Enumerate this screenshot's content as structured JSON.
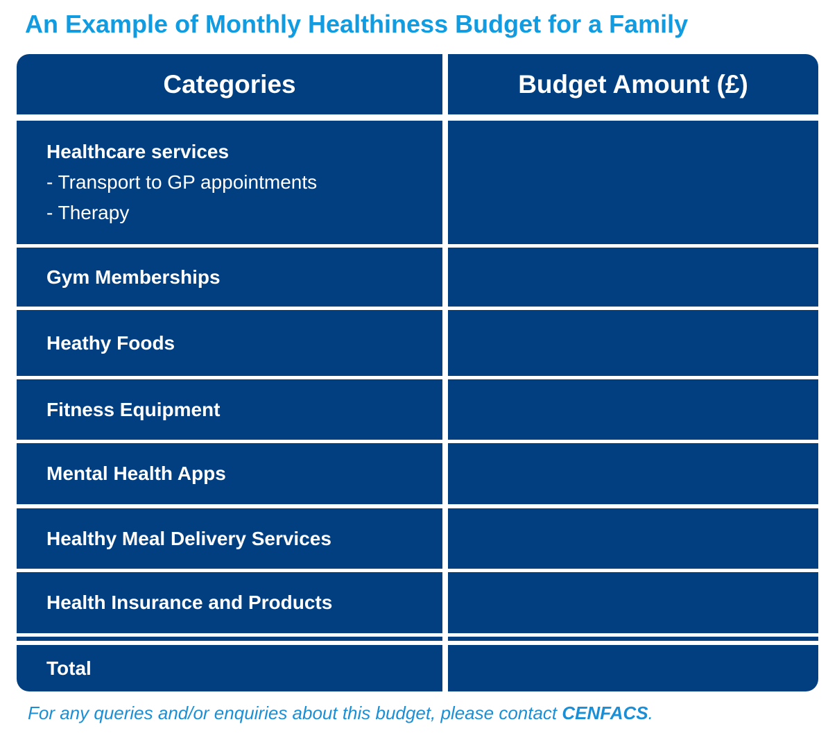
{
  "title": "An Example of Monthly Healthiness Budget for a Family",
  "table": {
    "header": [
      "Categories",
      "Budget Amount (£)"
    ],
    "rows": [
      {
        "label": "Healthcare services",
        "items": [
          "- Transport to GP appointments",
          "- Therapy"
        ]
      },
      {
        "label": "Gym Memberships"
      },
      {
        "label": "Heathy Foods"
      },
      {
        "label": "Fitness Equipment"
      },
      {
        "label": "Mental Health Apps"
      },
      {
        "label": "Healthy Meal Delivery Services"
      },
      {
        "label": "Health Insurance and Products"
      },
      {
        "label": "Total"
      }
    ]
  },
  "footer": {
    "text": "For any queries and/or enquiries about this budget, please contact ",
    "org": "CENFACS",
    "end": "."
  }
}
